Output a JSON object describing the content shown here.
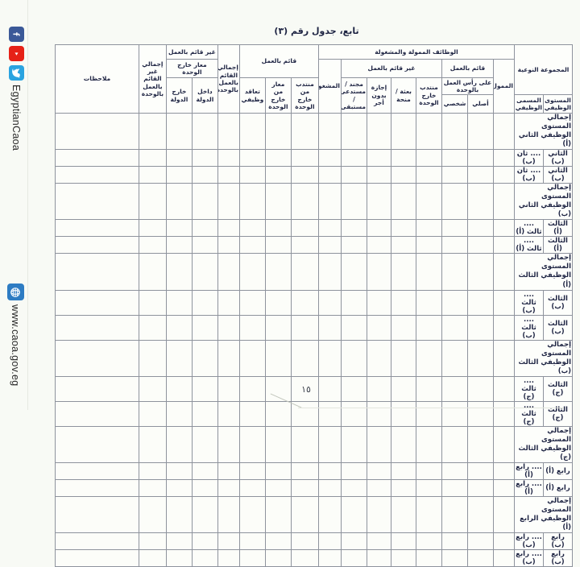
{
  "page": {
    "title": "تابع، جدول رقم (٣)",
    "page_number": "١٥"
  },
  "sidebar": {
    "social_handle": "EgyptianCaoa",
    "website": "www.caoa.gov.eg",
    "colors": {
      "facebook": "#3b5998",
      "youtube": "#e62117",
      "twitter": "#2aa3e0",
      "globe": "#2e7cc3",
      "ink": "#1d2342",
      "band_shade": "#e8e9e3"
    }
  },
  "table": {
    "header": {
      "qualitative_group": "المجموعة النوعية",
      "job_level": "المستوى الوظيفي",
      "job_title": "المسمى الوظيفي",
      "funded": "الممول",
      "funded_occupied_band": "الوظائف الممولة والمشغولة",
      "working_funded": "قائم بالعمل",
      "on_head_of_work_unit": "على رأس العمل بالوحدة",
      "original": "أصلي",
      "personal": "شخصي",
      "not_working_funded": "غير قائم بالعمل",
      "seconded_outside_unit": "منتدب خارج الوحدة",
      "mission_grant": "بعثة / منحة",
      "unpaid_leave": "إجازة بدون أجر",
      "conscripted_recalled": "مجند / مستدعى / مستبقى",
      "occupied": "المشغول",
      "working_occupied": "قائم بالعمل",
      "seconded_from_outside_unit": "منتدب من خارج الوحدة",
      "loaned_from_outside_unit": "معار من خارج الوحدة",
      "job_contract": "تعاقد وظيفي",
      "total_working_at_unit": "إجمالي القائم بالعمل بالوحدة",
      "not_working_occupied": "غير قائم بالعمل",
      "loaned_outside_unit": "معار خارج الوحدة",
      "inside_country": "داخل الدولة",
      "outside_country": "خارج الدولة",
      "total_not_working_at_unit": "إجمالي غير القائم بالعمل بالوحدة",
      "notes": "ملاحظات"
    },
    "empty_columns": 16,
    "rows": [
      {
        "type": "total",
        "label": "إجمالي المستوى الوظيفي الثاني (أ)"
      },
      {
        "type": "detail",
        "level": "الثاني (ب)",
        "title": ".... ثان (ب)"
      },
      {
        "type": "detail",
        "level": "الثاني (ب)",
        "title": ".... ثان (ب)"
      },
      {
        "type": "total",
        "label": "إجمالي المستوى الوظيفي الثاني (ب)"
      },
      {
        "type": "detail",
        "level": "الثالث (أ)",
        "title": ".... ثالث (أ)"
      },
      {
        "type": "detail",
        "level": "الثالث (أ)",
        "title": ".... ثالث (أ)"
      },
      {
        "type": "total",
        "label": "إجمالي المستوى الوظيفي الثالث (أ)"
      },
      {
        "type": "detail",
        "level": "الثالث (ب)",
        "title": ".... ثالث (ب)"
      },
      {
        "type": "detail",
        "level": "الثالث (ب)",
        "title": ".... ثالث (ب)"
      },
      {
        "type": "total",
        "label": "إجمالي المستوى الوظيفي الثالث (ب)"
      },
      {
        "type": "detail",
        "level": "الثالث (ج)",
        "title": ".... ثالث (ج)"
      },
      {
        "type": "detail",
        "level": "الثالث (ج)",
        "title": ".... ثالث (ج)"
      },
      {
        "type": "total",
        "label": "إجمالي المستوى الوظيفي الثالث (ج)"
      },
      {
        "type": "detail",
        "level": "رابع (أ)",
        "title": ".... رابع (أ)"
      },
      {
        "type": "detail",
        "level": "رابع (أ)",
        "title": ".... رابع (أ)"
      },
      {
        "type": "total",
        "label": "إجمالي المستوى الوظيفي الرابع (أ)"
      },
      {
        "type": "detail",
        "level": "رابع (ب)",
        "title": ".... رابع (ب)"
      },
      {
        "type": "detail",
        "level": "رابع (ب)",
        "title": ".... رابع (ب)"
      }
    ]
  }
}
